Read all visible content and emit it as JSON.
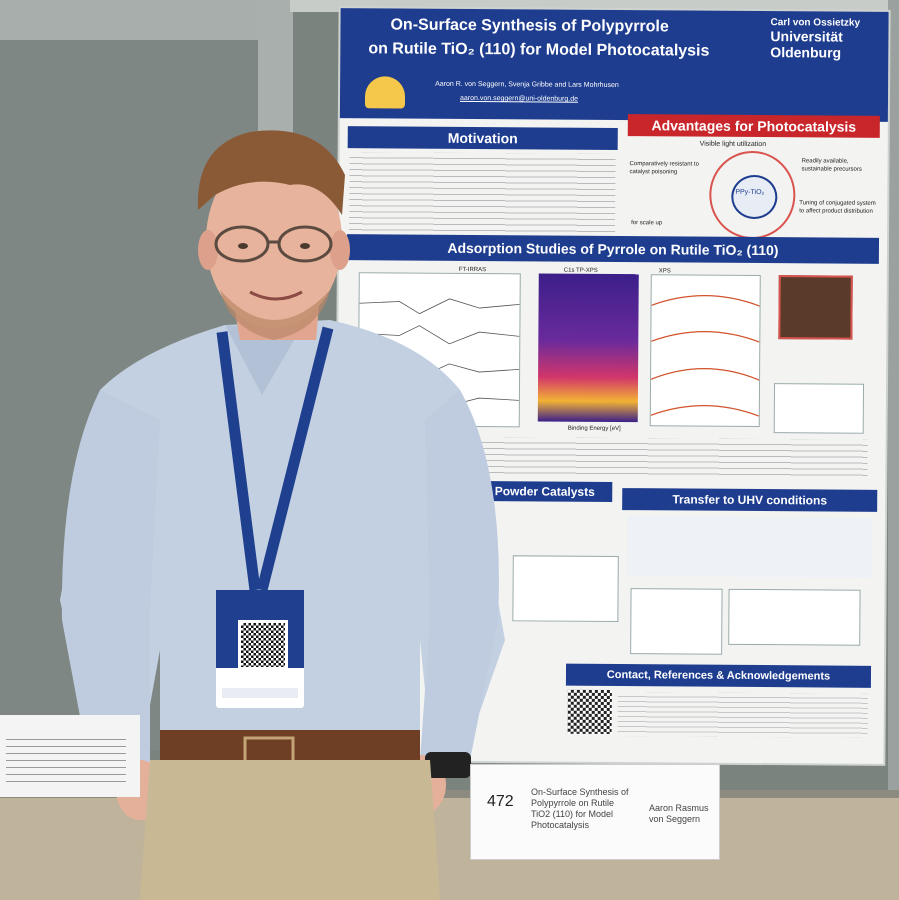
{
  "poster": {
    "title_line1": "On-Surface Synthesis of Polypyrrole",
    "title_line2": "on Rutile TiO₂ (110) for Model Photocatalysis",
    "authors": "Aaron R. von Seggern, Svenja Gribbe and Lars Mohrhusen",
    "email": "aaron.von.seggern@uni-oldenburg.de",
    "university_line1": "Carl von Ossietzky",
    "university_line2": "Universität",
    "university_line3": "Oldenburg",
    "sections": {
      "motivation": "Motivation",
      "advantages": "Advantages for Photocatalysis",
      "visible_light": "Visible light utilization",
      "advantage_left": "Comparatively resistant to catalyst poisoning",
      "advantage_right": "Readily available, sustainable precursors",
      "advantage_bottom": "Tuning of conjugated system to affect product distribution",
      "scale_up": "for scale up",
      "ppy_label": "PPy-TiO₂",
      "adsorption": "Adsorption Studies of Pyrrole on Rutile TiO₂ (110)",
      "ftirras": "FT-IRRAS",
      "xps": "XPS",
      "tpxps": "C1s TP-XPS",
      "powder": "Powder Catalysts",
      "transfer": "Transfer to UHV conditions",
      "contact": "Contact, References & Acknowledgements",
      "binding_energy": "Binding Energy [eV]"
    }
  },
  "badge": {
    "qr_label": "QR code"
  },
  "placard": {
    "number": "472",
    "title": "On-Surface Synthesis of Polypyrrole on Rutile TiO2 (110) for Model Photocatalysis",
    "presenter": "Aaron Rasmus von Seggern"
  },
  "colors": {
    "poster_blue": "#1e3d8f",
    "poster_red": "#c8262a",
    "wall": "#7d8580",
    "shirt": "#c5d1e2"
  }
}
